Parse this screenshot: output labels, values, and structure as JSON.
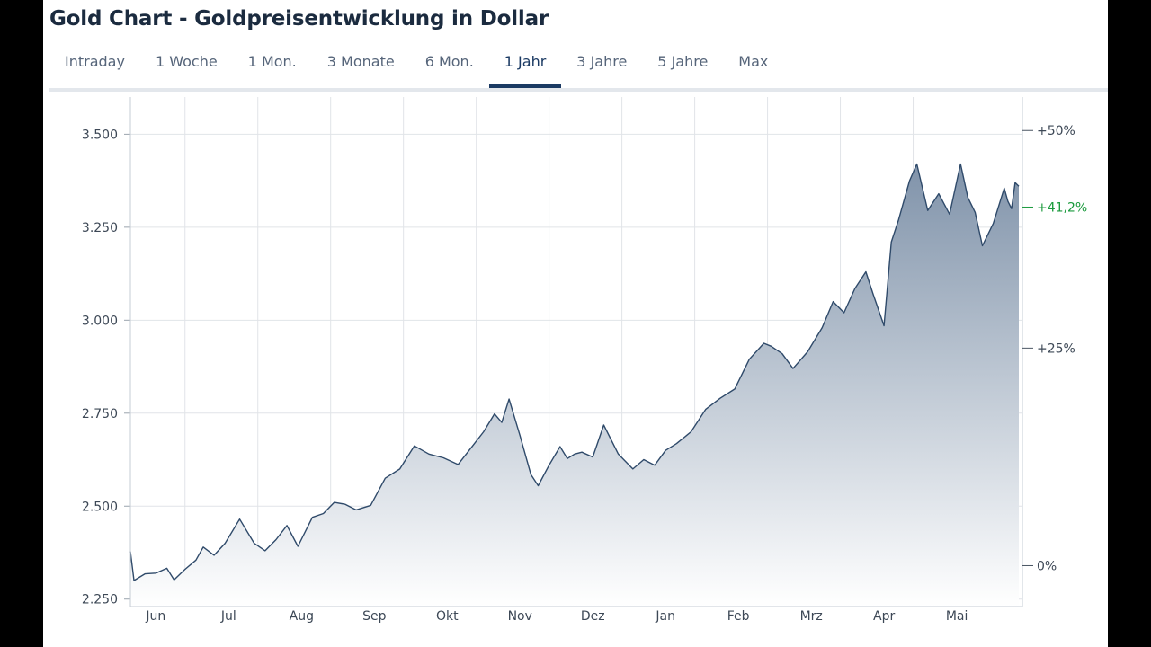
{
  "header": {
    "title": "Gold Chart - Goldpreisentwicklung in Dollar"
  },
  "tabs": [
    {
      "label": "Intraday",
      "active": false
    },
    {
      "label": "1 Woche",
      "active": false
    },
    {
      "label": "1 Mon.",
      "active": false
    },
    {
      "label": "3 Monate",
      "active": false
    },
    {
      "label": "6 Mon.",
      "active": false
    },
    {
      "label": "1 Jahr",
      "active": true
    },
    {
      "label": "3 Jahre",
      "active": false
    },
    {
      "label": "5 Jahre",
      "active": false
    },
    {
      "label": "Max",
      "active": false
    }
  ],
  "colors": {
    "line": "#2f4a6a",
    "fill_top": "#8093aa",
    "fill_bottom": "#ffffff",
    "grid": "#e1e4e8",
    "positive": "#1a9a3c",
    "active_tab": "#1b3a63"
  },
  "chart_data": {
    "type": "area",
    "title": "Gold Chart - Goldpreisentwicklung in Dollar",
    "xlabel": "",
    "ylabel": "",
    "grid": true,
    "legend": "none",
    "ylim": [
      2230,
      3600
    ],
    "yticks": [
      2250,
      2500,
      2750,
      3000,
      3250,
      3500
    ],
    "ytick_labels": [
      "2.250",
      "2.500",
      "2.750",
      "3.000",
      "3.250",
      "3.500"
    ],
    "x_domain": [
      0,
      12.25
    ],
    "months": [
      "Jun",
      "Jul",
      "Aug",
      "Sep",
      "Okt",
      "Nov",
      "Dez",
      "Jan",
      "Feb",
      "Mrz",
      "Apr",
      "Mai"
    ],
    "right_axis": {
      "base": 2340,
      "ticks": [
        0,
        25,
        50
      ],
      "tick_labels": [
        "0%",
        "+25%",
        "+50%"
      ],
      "current_label": "+41,2%",
      "current_pct": 41.2
    },
    "series": [
      {
        "x": [
          0,
          0.05,
          0.2,
          0.35,
          0.5,
          0.6,
          0.75,
          0.9,
          1.0,
          1.15,
          1.3,
          1.5,
          1.7,
          1.85,
          2.0,
          2.15,
          2.3,
          2.5,
          2.65,
          2.8,
          2.95,
          3.1,
          3.3,
          3.5,
          3.7,
          3.9,
          4.1,
          4.3,
          4.5,
          4.7,
          4.85,
          5.0,
          5.1,
          5.2,
          5.35,
          5.5,
          5.6,
          5.75,
          5.9,
          6.0,
          6.1,
          6.2,
          6.35,
          6.5,
          6.7,
          6.9,
          7.05,
          7.2,
          7.35,
          7.5,
          7.7,
          7.9,
          8.1,
          8.3,
          8.5,
          8.7,
          8.8,
          8.95,
          9.1,
          9.3,
          9.5,
          9.65,
          9.8,
          9.95,
          10.1,
          10.2,
          10.35,
          10.45,
          10.55,
          10.7,
          10.8,
          10.95,
          11.1,
          11.25,
          11.4,
          11.5,
          11.6,
          11.7,
          11.85,
          12.0,
          12.05,
          12.1,
          12.15,
          12.2
        ],
        "y": [
          2378,
          2300,
          2318,
          2320,
          2333,
          2302,
          2330,
          2355,
          2390,
          2368,
          2400,
          2465,
          2400,
          2380,
          2410,
          2448,
          2392,
          2470,
          2480,
          2510,
          2505,
          2490,
          2502,
          2575,
          2600,
          2662,
          2640,
          2630,
          2612,
          2662,
          2700,
          2748,
          2725,
          2788,
          2690,
          2585,
          2555,
          2610,
          2660,
          2628,
          2640,
          2645,
          2632,
          2718,
          2640,
          2600,
          2625,
          2610,
          2650,
          2668,
          2700,
          2760,
          2790,
          2815,
          2895,
          2938,
          2930,
          2910,
          2870,
          2915,
          2980,
          3050,
          3020,
          3085,
          3130,
          3070,
          2985,
          3210,
          3270,
          3375,
          3420,
          3295,
          3340,
          3285,
          3420,
          3330,
          3290,
          3200,
          3260,
          3355,
          3320,
          3300,
          3370,
          3360
        ]
      }
    ]
  }
}
